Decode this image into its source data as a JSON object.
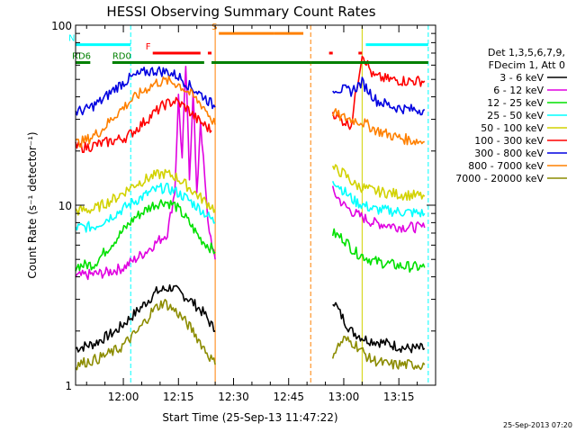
{
  "chart_data": {
    "type": "line",
    "title": "HESSI Observing Summary Count Rates",
    "xlabel": "Start Time (25-Sep-13 11:47:22)",
    "ylabel": "Count Rate (s⁻¹ detector⁻¹)",
    "y_scale": "log",
    "ylim": [
      1,
      100
    ],
    "xlim": [
      "11:47",
      "13:25"
    ],
    "x_ticks": [
      "12:00",
      "12:15",
      "12:30",
      "12:45",
      "13:00",
      "13:15"
    ],
    "y_ticks": [
      "1",
      "10",
      "100"
    ],
    "grid": false,
    "legend_position": "right",
    "legend_header": [
      "Det 1,3,5,6,7,9,",
      "FDecim 1, Att 0"
    ],
    "timestamp": "25-Sep-2013 07:20",
    "series": [
      {
        "name": "3 - 6 keV",
        "color": "#000000",
        "values": [
          [
            [
              "11:47",
              1.6
            ],
            [
              "11:52",
              1.7
            ],
            [
              "11:58",
              2.0
            ],
            [
              "12:04",
              2.6
            ],
            [
              "12:09",
              3.3
            ],
            [
              "12:13",
              3.5
            ],
            [
              "12:18",
              3.0
            ],
            [
              "12:22",
              2.5
            ],
            [
              "12:25",
              2.0
            ]
          ],
          [
            [
              "12:57",
              3.0
            ],
            [
              "12:59",
              2.5
            ],
            [
              "13:02",
              2.0
            ],
            [
              "13:06",
              1.8
            ],
            [
              "13:12",
              1.7
            ],
            [
              "13:17",
              1.6
            ],
            [
              "13:22",
              1.6
            ]
          ]
        ]
      },
      {
        "name": "6 - 12 keV",
        "color": "#e000e0",
        "values": [
          [
            [
              "11:47",
              4.0
            ],
            [
              "11:50",
              4.1
            ],
            [
              "11:55",
              4.2
            ],
            [
              "12:00",
              4.5
            ],
            [
              "12:06",
              5.5
            ],
            [
              "12:12",
              7.0
            ],
            [
              "12:14",
              12
            ],
            [
              "12:15",
              40
            ],
            [
              "12:16",
              18
            ],
            [
              "12:17",
              60
            ],
            [
              "12:18",
              14
            ],
            [
              "12:19",
              45
            ],
            [
              "12:20",
              11
            ],
            [
              "12:21",
              30
            ],
            [
              "12:23",
              8
            ],
            [
              "12:25",
              5
            ]
          ],
          [
            [
              "12:57",
              12
            ],
            [
              "13:00",
              10
            ],
            [
              "13:03",
              9
            ],
            [
              "13:08",
              8
            ],
            [
              "13:15",
              7.6
            ],
            [
              "13:22",
              7.5
            ]
          ]
        ]
      },
      {
        "name": "12 - 25 keV",
        "color": "#00e000",
        "values": [
          [
            [
              "11:47",
              4.6
            ],
            [
              "11:52",
              4.7
            ],
            [
              "11:58",
              6.5
            ],
            [
              "12:03",
              8.5
            ],
            [
              "12:08",
              10
            ],
            [
              "12:11",
              10.5
            ],
            [
              "12:14",
              10
            ],
            [
              "12:17",
              8.5
            ],
            [
              "12:21",
              6.5
            ],
            [
              "12:25",
              5.5
            ]
          ],
          [
            [
              "12:57",
              7.0
            ],
            [
              "13:00",
              6.5
            ],
            [
              "13:03",
              5.5
            ],
            [
              "13:08",
              4.9
            ],
            [
              "13:15",
              4.6
            ],
            [
              "13:22",
              4.5
            ]
          ]
        ]
      },
      {
        "name": "25 - 50 keV",
        "color": "#00ffff",
        "values": [
          [
            [
              "11:47",
              7.5
            ],
            [
              "11:52",
              7.6
            ],
            [
              "11:58",
              9.0
            ],
            [
              "12:03",
              10.5
            ],
            [
              "12:08",
              12
            ],
            [
              "12:11",
              12.5
            ],
            [
              "12:14",
              12
            ],
            [
              "12:17",
              11
            ],
            [
              "12:21",
              9.5
            ],
            [
              "12:25",
              8.0
            ]
          ],
          [
            [
              "12:57",
              14
            ],
            [
              "13:00",
              12
            ],
            [
              "13:03",
              10.5
            ],
            [
              "13:08",
              9.5
            ],
            [
              "13:15",
              9.2
            ],
            [
              "13:22",
              9.0
            ]
          ]
        ]
      },
      {
        "name": "50 - 100 keV",
        "color": "#d2d200",
        "values": [
          [
            [
              "11:47",
              9.3
            ],
            [
              "11:52",
              9.5
            ],
            [
              "11:58",
              11
            ],
            [
              "12:03",
              13
            ],
            [
              "12:08",
              14.5
            ],
            [
              "12:11",
              15
            ],
            [
              "12:14",
              14.5
            ],
            [
              "12:17",
              13
            ],
            [
              "12:21",
              11
            ],
            [
              "12:25",
              9.5
            ]
          ],
          [
            [
              "12:57",
              16
            ],
            [
              "13:00",
              15
            ],
            [
              "13:03",
              13
            ],
            [
              "13:08",
              12
            ],
            [
              "13:15",
              11.5
            ],
            [
              "13:22",
              11.2
            ]
          ]
        ]
      },
      {
        "name": "100 - 300 keV",
        "color": "#ff0000",
        "values": [
          [
            [
              "11:47",
              21
            ],
            [
              "11:50",
              21
            ],
            [
              "11:54",
              22
            ],
            [
              "11:58",
              23
            ],
            [
              "12:01",
              24
            ],
            [
              "12:04",
              27
            ],
            [
              "12:08",
              32
            ],
            [
              "12:11",
              36
            ],
            [
              "12:14",
              38
            ],
            [
              "12:17",
              35
            ],
            [
              "12:20",
              30
            ],
            [
              "12:24",
              26
            ]
          ],
          [
            [
              "12:57",
              33
            ],
            [
              "12:59",
              30
            ],
            [
              "13:02",
              28
            ],
            [
              "13:05",
              70
            ],
            [
              "13:08",
              52
            ],
            [
              "13:12",
              50
            ],
            [
              "13:17",
              49
            ],
            [
              "13:22",
              49
            ]
          ]
        ]
      },
      {
        "name": "300 - 800 keV",
        "color": "#0000e0",
        "values": [
          [
            [
              "11:47",
              33
            ],
            [
              "11:50",
              34
            ],
            [
              "11:54",
              38
            ],
            [
              "11:58",
              45
            ],
            [
              "12:02",
              51
            ],
            [
              "12:06",
              55
            ],
            [
              "12:09",
              56
            ],
            [
              "12:12",
              55
            ],
            [
              "12:15",
              52
            ],
            [
              "12:18",
              46
            ],
            [
              "12:22",
              40
            ],
            [
              "12:25",
              35
            ]
          ],
          [
            [
              "12:57",
              45
            ],
            [
              "12:59",
              44
            ],
            [
              "13:02",
              43
            ],
            [
              "13:05",
              48
            ],
            [
              "13:09",
              38
            ],
            [
              "13:14",
              35
            ],
            [
              "13:18",
              34
            ],
            [
              "13:22",
              34
            ]
          ]
        ]
      },
      {
        "name": "800 - 7000 keV",
        "color": "#ff8000",
        "values": [
          [
            [
              "11:47",
              22
            ],
            [
              "11:50",
              23
            ],
            [
              "11:54",
              26
            ],
            [
              "11:58",
              32
            ],
            [
              "12:02",
              38
            ],
            [
              "12:06",
              44
            ],
            [
              "12:09",
              48
            ],
            [
              "12:12",
              49
            ],
            [
              "12:15",
              47
            ],
            [
              "12:18",
              42
            ],
            [
              "12:22",
              35
            ],
            [
              "12:25",
              28
            ]
          ],
          [
            [
              "12:57",
              33
            ],
            [
              "12:59",
              31
            ],
            [
              "13:02",
              30
            ],
            [
              "13:05",
              29
            ],
            [
              "13:09",
              26
            ],
            [
              "13:14",
              24
            ],
            [
              "13:18",
              23
            ],
            [
              "13:22",
              22.5
            ]
          ]
        ]
      },
      {
        "name": "7000 - 20000 keV",
        "color": "#8c8c00",
        "values": [
          [
            [
              "11:47",
              1.3
            ],
            [
              "11:53",
              1.4
            ],
            [
              "11:59",
              1.6
            ],
            [
              "12:04",
              2.0
            ],
            [
              "12:08",
              2.6
            ],
            [
              "12:11",
              2.9
            ],
            [
              "12:15",
              2.5
            ],
            [
              "12:19",
              2.0
            ],
            [
              "12:22",
              1.6
            ],
            [
              "12:25",
              1.3
            ]
          ],
          [
            [
              "12:57",
              1.5
            ],
            [
              "13:00",
              1.8
            ],
            [
              "13:03",
              1.7
            ],
            [
              "13:07",
              1.4
            ],
            [
              "13:12",
              1.3
            ],
            [
              "13:17",
              1.3
            ],
            [
              "13:22",
              1.3
            ]
          ]
        ]
      }
    ],
    "flags": [
      {
        "label": "N",
        "color": "#00ffff",
        "segments": [
          [
            "11:47",
            "12:02"
          ],
          [
            "13:06",
            "13:23"
          ]
        ],
        "y": 78
      },
      {
        "label": "F",
        "color": "#ff0000",
        "segments": [
          [
            "12:08",
            "12:21"
          ],
          [
            "12:23",
            "12:24"
          ],
          [
            "12:56",
            "12:57"
          ],
          [
            "13:04",
            "13:05"
          ]
        ],
        "y": 70
      },
      {
        "label": "S",
        "color": "#ff8000",
        "segments": [
          [
            "12:26",
            "12:41"
          ],
          [
            "12:41",
            "12:49"
          ]
        ],
        "y": 90
      },
      {
        "label": "RD0",
        "color": "#008000",
        "segments": [
          [
            "11:57",
            "12:22"
          ],
          [
            "12:24",
            "12:51"
          ],
          [
            "12:51",
            "13:23"
          ]
        ],
        "y": 62
      },
      {
        "label": "RD6",
        "color": "#008000",
        "segments": [
          [
            "11:47",
            "11:51"
          ]
        ],
        "y": 62
      }
    ],
    "vlines": [
      {
        "time": "12:02",
        "color": "#00ffff",
        "style": "dashed"
      },
      {
        "time": "12:25",
        "color": "#ff8000",
        "style": "solid"
      },
      {
        "time": "12:51",
        "color": "#ff8000",
        "style": "dashed"
      },
      {
        "time": "13:05",
        "color": "#d2d200",
        "style": "solid"
      },
      {
        "time": "13:23",
        "color": "#00ffff",
        "style": "dashed"
      }
    ]
  }
}
